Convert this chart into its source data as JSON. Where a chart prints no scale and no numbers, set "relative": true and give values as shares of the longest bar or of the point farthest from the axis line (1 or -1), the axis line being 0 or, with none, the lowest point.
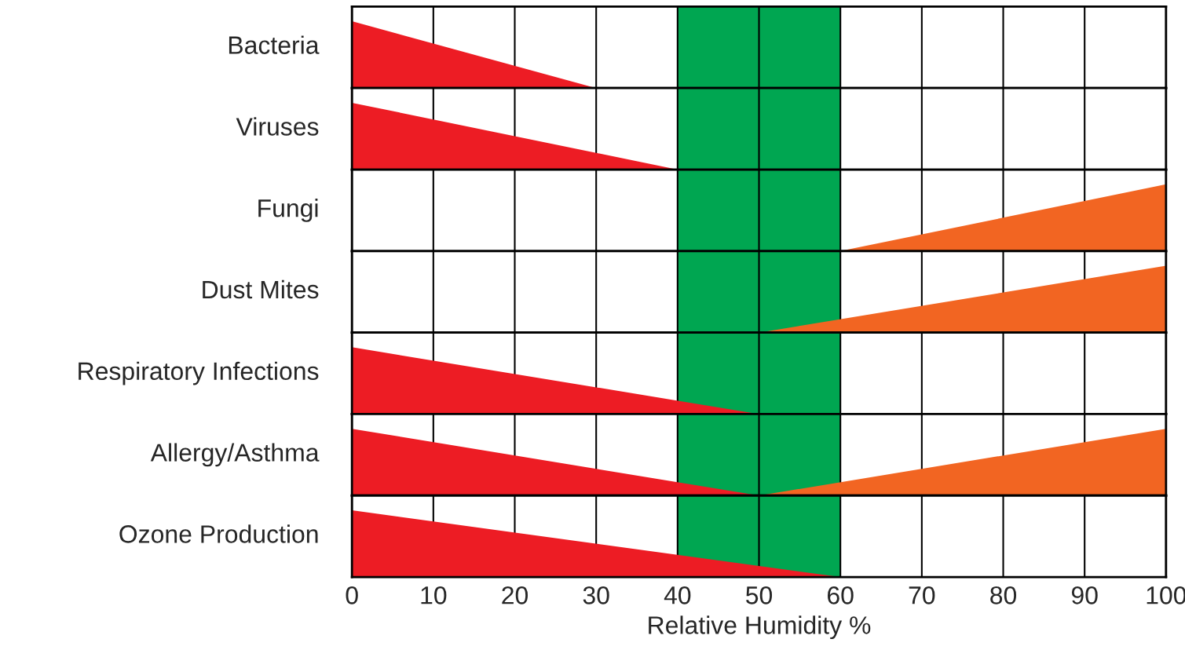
{
  "chart_data": [
    {
      "type": "area",
      "ylabel": "Bacteria",
      "relative": true,
      "xlim": [
        0,
        100
      ],
      "xticks": [
        0,
        10,
        20,
        30,
        40,
        50,
        60,
        70,
        80,
        90,
        100
      ],
      "grid": "x",
      "tick_labels": false,
      "bands": [
        {
          "axis": "x",
          "from": 40,
          "to": 60,
          "color": "#00a651"
        }
      ],
      "series": [
        {
          "color": "#ed1c24",
          "x": [
            0,
            30
          ],
          "values": [
            1,
            0
          ]
        }
      ]
    },
    {
      "type": "area",
      "ylabel": "Viruses",
      "relative": true,
      "xlim": [
        0,
        100
      ],
      "xticks": [
        0,
        10,
        20,
        30,
        40,
        50,
        60,
        70,
        80,
        90,
        100
      ],
      "grid": "x",
      "tick_labels": false,
      "bands": [
        {
          "axis": "x",
          "from": 40,
          "to": 60,
          "color": "#00a651"
        }
      ],
      "series": [
        {
          "color": "#ed1c24",
          "x": [
            0,
            40
          ],
          "values": [
            1,
            0
          ]
        }
      ]
    },
    {
      "type": "area",
      "ylabel": "Fungi",
      "relative": true,
      "xlim": [
        0,
        100
      ],
      "xticks": [
        0,
        10,
        20,
        30,
        40,
        50,
        60,
        70,
        80,
        90,
        100
      ],
      "grid": "x",
      "tick_labels": false,
      "bands": [
        {
          "axis": "x",
          "from": 40,
          "to": 60,
          "color": "#00a651"
        }
      ],
      "series": [
        {
          "color": "#f26522",
          "x": [
            60,
            100
          ],
          "values": [
            0,
            1
          ]
        }
      ]
    },
    {
      "type": "area",
      "ylabel": "Dust Mites",
      "relative": true,
      "xlim": [
        0,
        100
      ],
      "xticks": [
        0,
        10,
        20,
        30,
        40,
        50,
        60,
        70,
        80,
        90,
        100
      ],
      "grid": "x",
      "tick_labels": false,
      "bands": [
        {
          "axis": "x",
          "from": 40,
          "to": 60,
          "color": "#00a651"
        }
      ],
      "series": [
        {
          "color": "#f26522",
          "x": [
            50,
            100
          ],
          "values": [
            0,
            1
          ]
        }
      ]
    },
    {
      "type": "area",
      "ylabel": "Respiratory Infections",
      "relative": true,
      "xlim": [
        0,
        100
      ],
      "xticks": [
        0,
        10,
        20,
        30,
        40,
        50,
        60,
        70,
        80,
        90,
        100
      ],
      "grid": "x",
      "tick_labels": false,
      "bands": [
        {
          "axis": "x",
          "from": 40,
          "to": 60,
          "color": "#00a651"
        }
      ],
      "series": [
        {
          "color": "#ed1c24",
          "x": [
            0,
            50
          ],
          "values": [
            1,
            0
          ]
        }
      ]
    },
    {
      "type": "area",
      "ylabel": "Allergy/Asthma",
      "relative": true,
      "xlim": [
        0,
        100
      ],
      "xticks": [
        0,
        10,
        20,
        30,
        40,
        50,
        60,
        70,
        80,
        90,
        100
      ],
      "grid": "x",
      "tick_labels": false,
      "bands": [
        {
          "axis": "x",
          "from": 40,
          "to": 60,
          "color": "#00a651"
        }
      ],
      "series": [
        {
          "color": "#ed1c24",
          "x": [
            0,
            50
          ],
          "values": [
            1,
            0
          ]
        },
        {
          "color": "#f26522",
          "x": [
            50,
            100
          ],
          "values": [
            0,
            1
          ]
        }
      ]
    },
    {
      "type": "area",
      "ylabel": "Ozone Production",
      "xlabel": "Relative Humidity %",
      "relative": true,
      "xlim": [
        0,
        100
      ],
      "xticks": [
        0,
        10,
        20,
        30,
        40,
        50,
        60,
        70,
        80,
        90,
        100
      ],
      "grid": "x",
      "tick_labels": "x",
      "bands": [
        {
          "axis": "x",
          "from": 40,
          "to": 60,
          "color": "#00a651"
        }
      ],
      "series": [
        {
          "color": "#ed1c24",
          "x": [
            0,
            60
          ],
          "values": [
            1,
            0
          ]
        }
      ]
    }
  ]
}
